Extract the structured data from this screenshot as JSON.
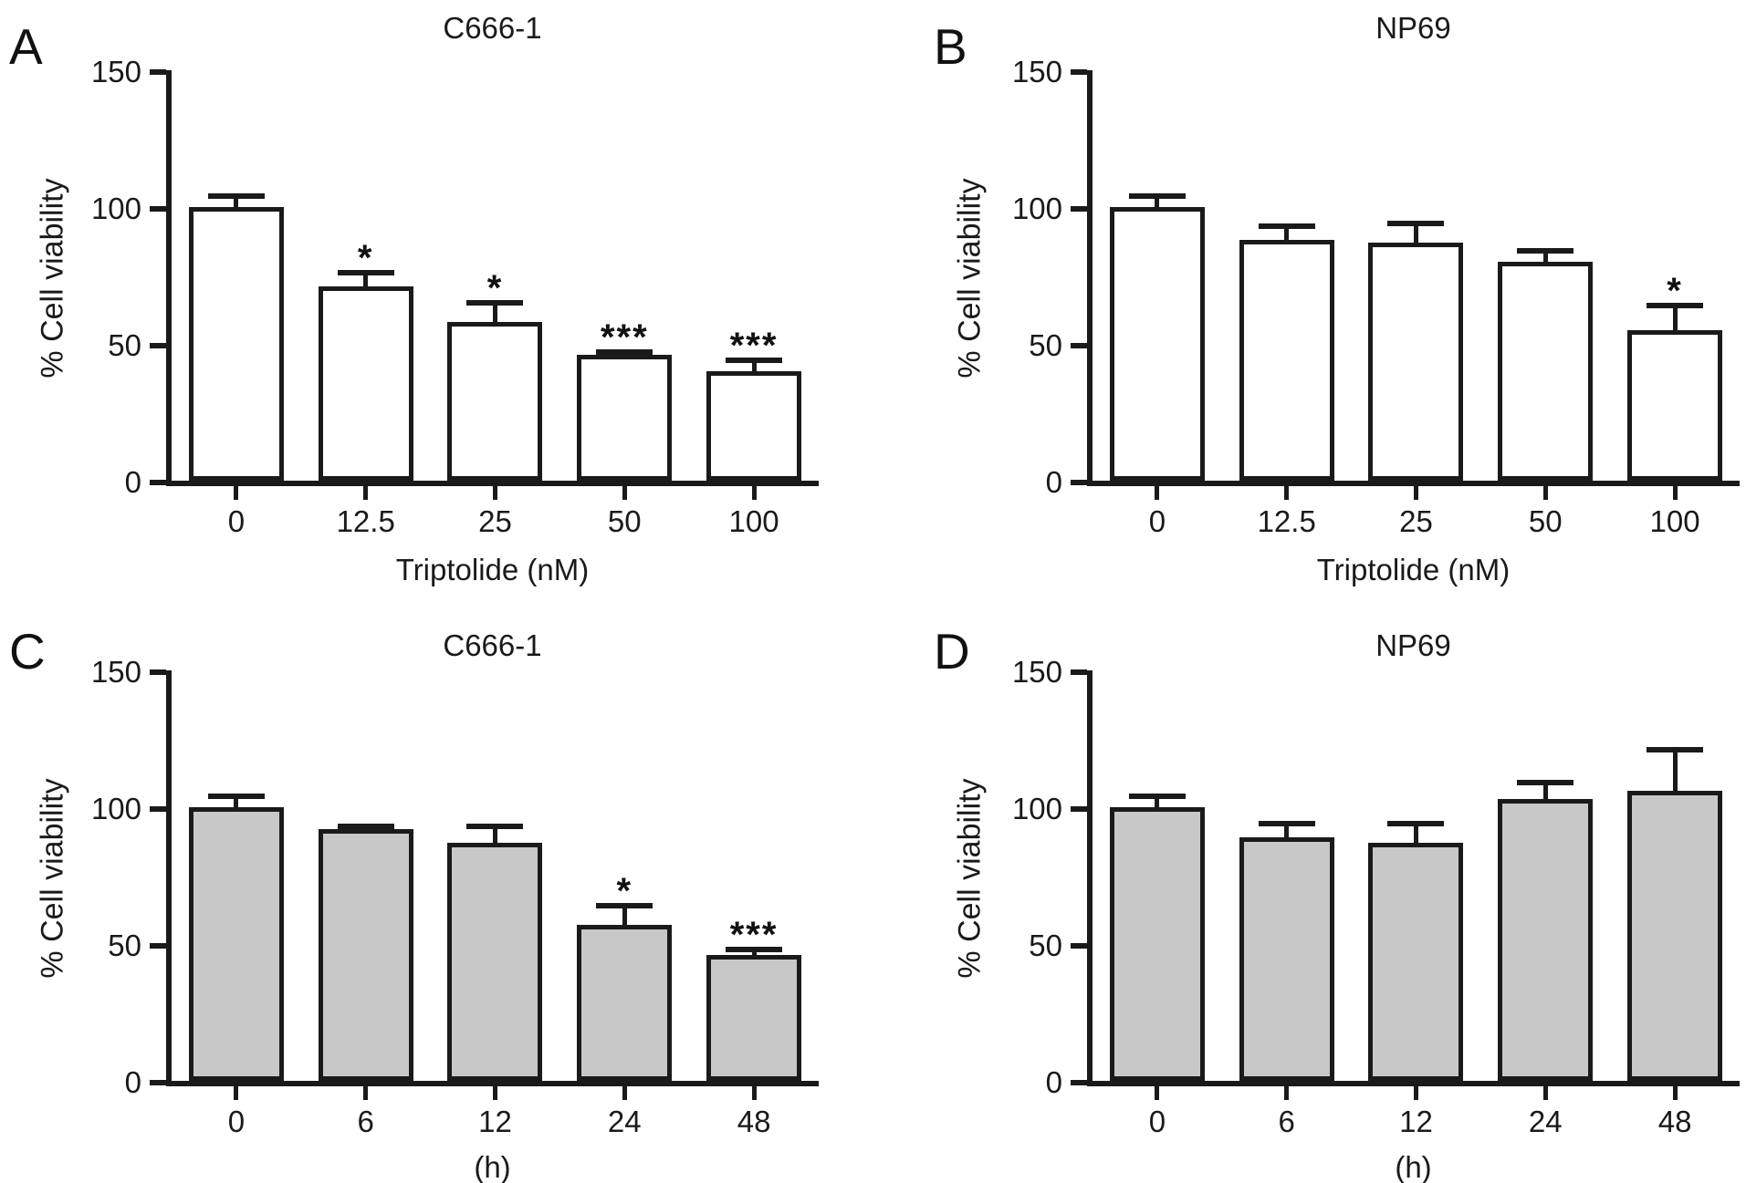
{
  "figure": {
    "background": "#ffffff",
    "ink_color": "#1a1a1a",
    "panel_labels": [
      "A",
      "B",
      "C",
      "D"
    ]
  },
  "chart_data": [
    {
      "type": "bar",
      "panel_label": "A",
      "title": "C666-1",
      "categories": [
        "0",
        "12.5",
        "25",
        "50",
        "100"
      ],
      "values": [
        100,
        71,
        58,
        46,
        40
      ],
      "errors": [
        5,
        6,
        8,
        2,
        5
      ],
      "significance": [
        "",
        "*",
        "*",
        "***",
        "***"
      ],
      "xlabel": "Triptolide (nM)",
      "ylabel": "% Cell viability",
      "ylim": [
        0,
        150
      ],
      "yticks": [
        0,
        50,
        100,
        150
      ],
      "bar_fill": "#ffffff",
      "grid": false,
      "legend": "none"
    },
    {
      "type": "bar",
      "panel_label": "B",
      "title": "NP69",
      "categories": [
        "0",
        "12.5",
        "25",
        "50",
        "100"
      ],
      "values": [
        100,
        88,
        87,
        80,
        55
      ],
      "errors": [
        5,
        6,
        8,
        5,
        10
      ],
      "significance": [
        "",
        "",
        "",
        "",
        "*"
      ],
      "xlabel": "Triptolide (nM)",
      "ylabel": "% Cell viability",
      "ylim": [
        0,
        150
      ],
      "yticks": [
        0,
        50,
        100,
        150
      ],
      "bar_fill": "#ffffff",
      "grid": false,
      "legend": "none"
    },
    {
      "type": "bar",
      "panel_label": "C",
      "title": "C666-1",
      "categories": [
        "0",
        "6",
        "12",
        "24",
        "48"
      ],
      "values": [
        100,
        92,
        87,
        57,
        46
      ],
      "errors": [
        5,
        2,
        7,
        8,
        3
      ],
      "significance": [
        "",
        "",
        "",
        "*",
        "***"
      ],
      "xlabel": "(h)",
      "ylabel": "% Cell viability",
      "ylim": [
        0,
        150
      ],
      "yticks": [
        0,
        50,
        100,
        150
      ],
      "bar_fill": "#c8c8c8",
      "grid": false,
      "legend": "none"
    },
    {
      "type": "bar",
      "panel_label": "D",
      "title": "NP69",
      "categories": [
        "0",
        "6",
        "12",
        "24",
        "48"
      ],
      "values": [
        100,
        89,
        87,
        103,
        106
      ],
      "errors": [
        5,
        6,
        8,
        7,
        16
      ],
      "significance": [
        "",
        "",
        "",
        "",
        ""
      ],
      "xlabel": "(h)",
      "ylabel": "% Cell viability",
      "ylim": [
        0,
        150
      ],
      "yticks": [
        0,
        50,
        100,
        150
      ],
      "bar_fill": "#c8c8c8",
      "grid": false,
      "legend": "none"
    }
  ]
}
